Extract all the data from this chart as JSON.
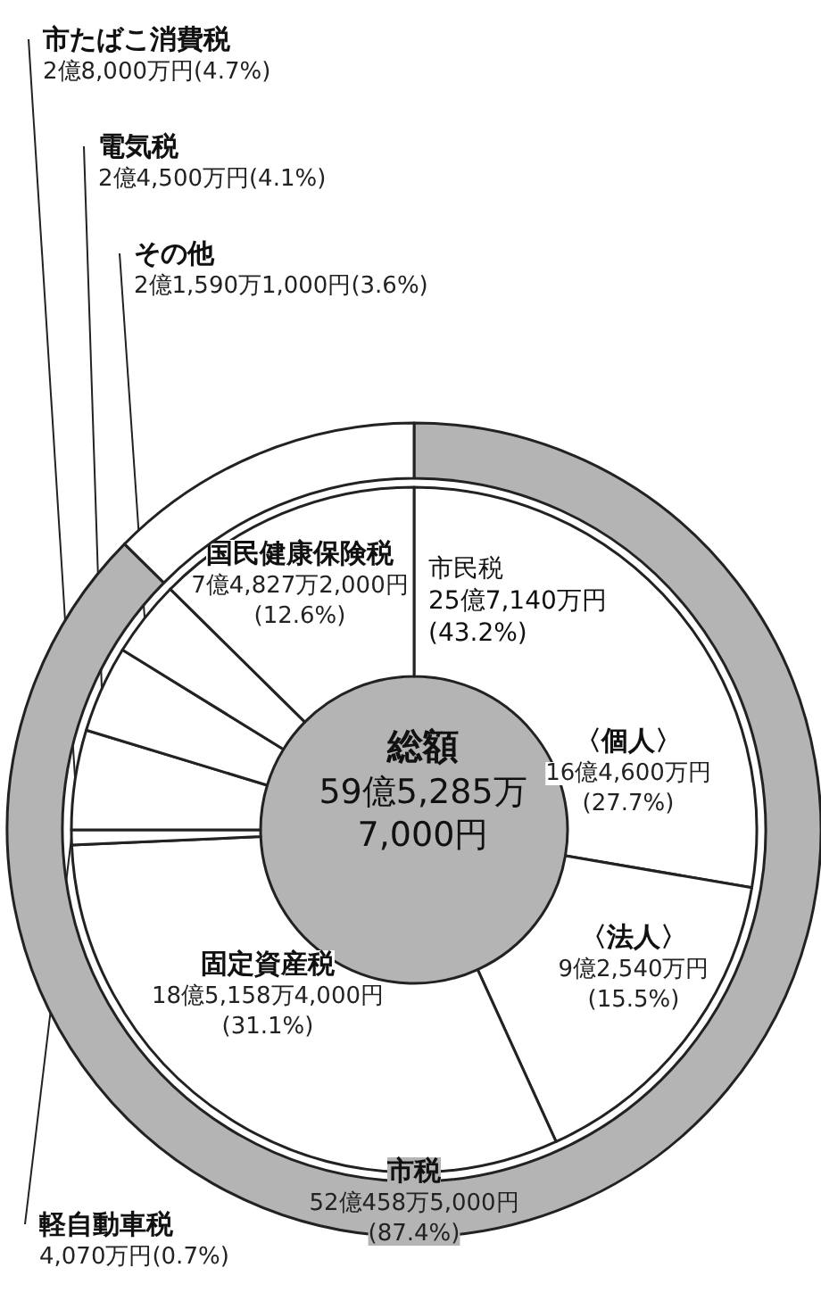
{
  "chart_data": [
    {
      "type": "donut",
      "categories": [
        "市税",
        null
      ],
      "values": [
        87.4,
        12.6
      ],
      "colors": [
        "#b4b4b4",
        "#ffffff"
      ],
      "value_labels": [
        "52億458万5,000円(87.4%)",
        null
      ]
    },
    {
      "type": "donut",
      "title": "総額",
      "subtitle": "59億5,285万7,000円",
      "annotations": [
        "市民税 25億7,140万円(43.2%)"
      ],
      "categories": [
        "〈個人〉",
        "〈法人〉",
        "固定資産税",
        "軽自動車税",
        "市たばこ消費税",
        "電気税",
        "その他",
        "国民健康保険税"
      ],
      "values": [
        27.7,
        15.5,
        31.1,
        0.7,
        4.7,
        4.1,
        3.6,
        12.6
      ],
      "colors": [
        "#ffffff",
        "#ffffff",
        "#ffffff",
        "#ffffff",
        "#ffffff",
        "#ffffff",
        "#ffffff",
        "#ffffff"
      ],
      "value_labels": [
        "16億4,600万円(27.7%)",
        "9億2,540万円(15.5%)",
        "18億5,158万4,000円(31.1%)",
        "4,070万円(0.7%)",
        "2億8,000万円(4.7%)",
        "2億4,500万円(4.1%)",
        "2億1,590万1,000円(3.6%)",
        "7億4,827万2,000円(12.6%)"
      ]
    }
  ]
}
